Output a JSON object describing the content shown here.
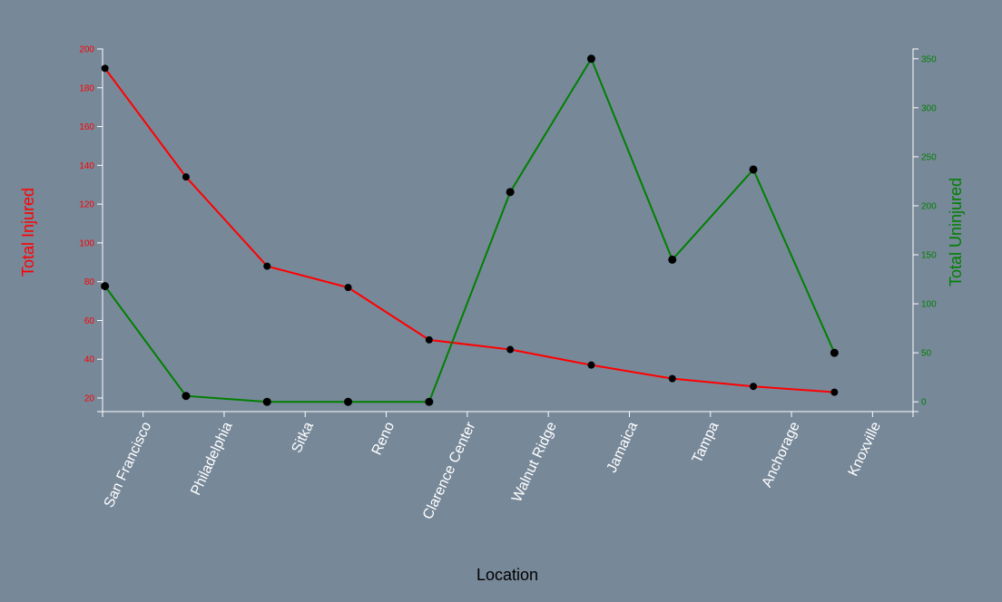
{
  "chart_data": {
    "type": "line",
    "categories": [
      "San Francisco",
      "Philadelphia",
      "Sitka",
      "Reno",
      "Clarence Center",
      "Walnut Ridge",
      "Jamaica",
      "Tampa",
      "Anchorage",
      "Knoxville"
    ],
    "xlabel": "Location",
    "series": [
      {
        "name": "Total Injured",
        "axis": "left",
        "color": "#ff0000",
        "values": [
          190,
          134,
          88,
          77,
          50,
          45,
          37,
          30,
          26,
          23
        ]
      },
      {
        "name": "Total Uninjured",
        "axis": "right",
        "color": "#008000",
        "values": [
          118,
          6,
          0,
          0,
          0,
          214,
          350,
          145,
          237,
          50
        ]
      }
    ],
    "y_left": {
      "label": "Total Injured",
      "ticks": [
        "20",
        "40",
        "60",
        "80",
        "100",
        "120",
        "140",
        "160",
        "180",
        "200"
      ],
      "range": [
        13,
        200
      ],
      "color": "#ff0000"
    },
    "y_right": {
      "label": "Total Uninjured",
      "ticks": [
        "0",
        "50",
        "100",
        "150",
        "200",
        "250",
        "300",
        "350"
      ],
      "range": [
        -10,
        360
      ],
      "color": "#008000"
    },
    "background": "#778899",
    "grid": false
  }
}
